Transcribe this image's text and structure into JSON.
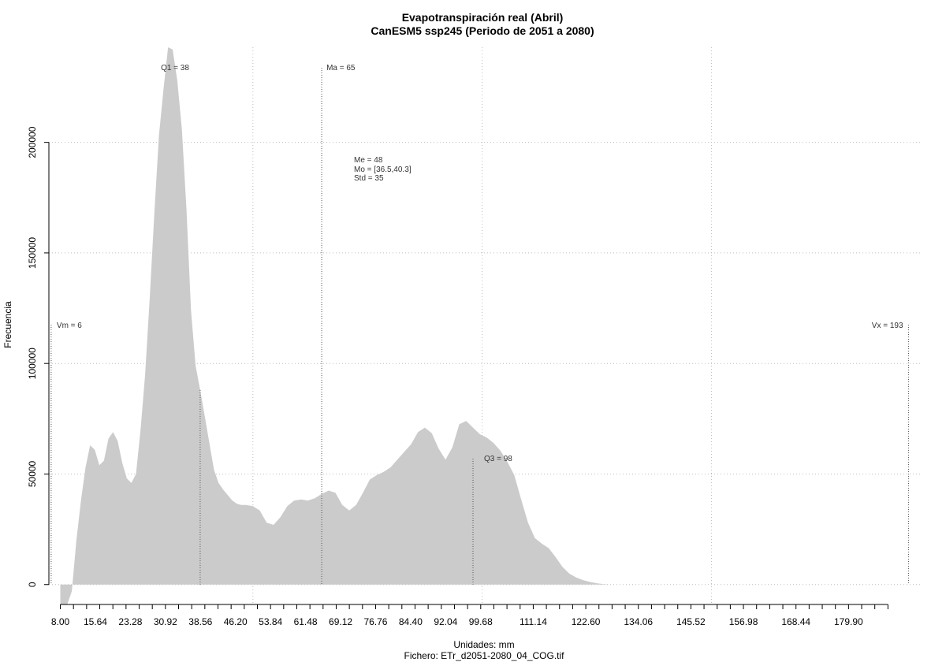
{
  "chart_data": {
    "type": "area",
    "title": "Evapotranspiración real (Abril)",
    "subtitle": "CanESM5 ssp245 (Periodo de 2051 a 2080)",
    "xlabel": "Unidades: mm",
    "file_label": "Fichero: ETr_d2051-2080_04_COG.tif",
    "ylabel": "Frecuencia",
    "xlim": [
      5.5,
      196
    ],
    "ylim": [
      -9000,
      243000
    ],
    "x_ticks": [
      "8.00",
      "15.64",
      "23.28",
      "30.92",
      "38.56",
      "46.20",
      "53.84",
      "61.48",
      "69.12",
      "76.76",
      "84.40",
      "92.04",
      "99.68",
      "111.14",
      "122.60",
      "134.06",
      "145.52",
      "156.98",
      "168.44",
      "179.90"
    ],
    "y_ticks": [
      "0",
      "50000",
      "100000",
      "150000",
      "200000"
    ],
    "grid": true,
    "fill_color": "#cbcbcb",
    "x": [
      8.0,
      9.5,
      10.5,
      11.5,
      12.5,
      13.5,
      14.5,
      15.5,
      16.5,
      17.5,
      18.5,
      19.5,
      20.5,
      21.5,
      22.5,
      23.5,
      24.5,
      25.5,
      26.5,
      27.5,
      28.5,
      29.5,
      30.5,
      31.5,
      32.5,
      33.5,
      34.5,
      35.5,
      36.5,
      37.5,
      38.5,
      39.5,
      40.5,
      41.5,
      42.5,
      43.5,
      44.5,
      45.5,
      46.5,
      47.5,
      48.5,
      50.0,
      51.5,
      53.0,
      54.5,
      56.0,
      57.5,
      59.0,
      60.5,
      62.0,
      63.5,
      65.0,
      66.5,
      68.0,
      69.5,
      71.0,
      72.5,
      74.0,
      75.5,
      77.0,
      78.5,
      80.0,
      81.5,
      83.0,
      84.5,
      86.0,
      87.5,
      89.0,
      90.5,
      92.0,
      93.5,
      95.0,
      96.5,
      98.0,
      99.5,
      101.0,
      102.5,
      104.0,
      105.5,
      107.0,
      108.5,
      110.0,
      111.5,
      113.0,
      114.5,
      116.0,
      117.5,
      119.0,
      120.5,
      122.0,
      123.5,
      125.0,
      126.5,
      128.0,
      129.5,
      131.0,
      132.5,
      134.0,
      135.5,
      137.0,
      138.5,
      140.0,
      142.0,
      144.0,
      146.0,
      150.0,
      160.0,
      175.0,
      193.0
    ],
    "y": [
      -9000,
      -9000,
      -3000,
      20000,
      38000,
      53000,
      63000,
      61000,
      54000,
      56000,
      66000,
      69000,
      65000,
      55000,
      48000,
      46000,
      50000,
      70000,
      95000,
      130000,
      168000,
      203000,
      224000,
      243000,
      242000,
      228000,
      206000,
      170000,
      124000,
      99000,
      88000,
      76000,
      64000,
      52000,
      46000,
      43000,
      40500,
      38000,
      36500,
      36000,
      36000,
      35500,
      33500,
      28000,
      27000,
      30500,
      35500,
      38000,
      38500,
      38000,
      39000,
      41000,
      42500,
      41500,
      36000,
      33500,
      36000,
      41500,
      47500,
      49500,
      51000,
      53000,
      56500,
      60000,
      63500,
      69000,
      71000,
      68500,
      61500,
      56500,
      62000,
      72500,
      74000,
      71000,
      68000,
      66500,
      64000,
      60500,
      55500,
      49500,
      38500,
      28000,
      21000,
      18500,
      16500,
      12500,
      8000,
      5000,
      3200,
      2000,
      1200,
      600,
      200,
      0,
      0,
      0,
      0,
      0,
      0,
      0,
      0,
      0,
      0,
      0,
      0,
      0,
      0,
      0,
      0
    ],
    "annotations": {
      "q1": {
        "label": "Q1 = 38",
        "x": 38.5
      },
      "ma": {
        "label": "Ma = 65",
        "x": 65.0
      },
      "q3": {
        "label": "Q3 = 98",
        "x": 98.0
      },
      "vm": {
        "label": "Vm = 6",
        "x": 6.0
      },
      "vx": {
        "label": "Vx = 193",
        "x": 193.0
      },
      "stats": [
        "Me = 48",
        "Mo = [36.5,40.3]",
        "Std = 35"
      ]
    }
  }
}
